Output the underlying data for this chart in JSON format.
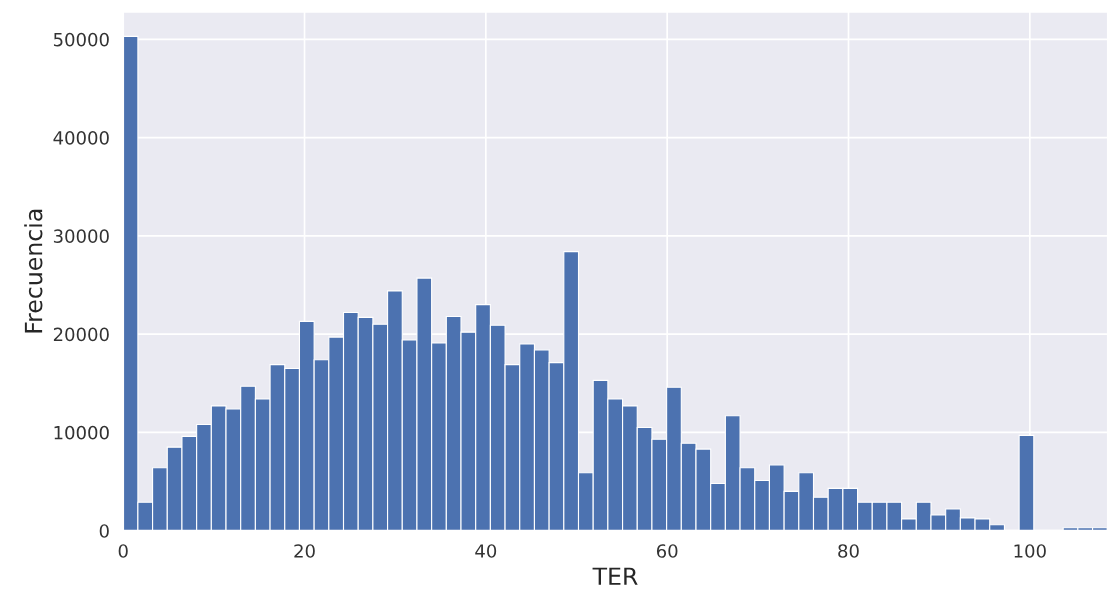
{
  "chart_data": {
    "type": "histogram",
    "xlabel": "TER",
    "ylabel": "Frecuencia",
    "color": "#4c72b0",
    "bins": [
      0,
      1.62,
      3.24,
      4.86,
      6.48,
      8.1,
      9.72,
      11.34,
      12.96,
      14.58,
      16.2,
      17.82,
      19.44,
      21.06,
      22.68,
      24.3,
      25.92,
      27.54,
      29.16,
      30.78,
      32.4,
      34.02,
      35.64,
      37.26,
      38.88,
      40.5,
      42.12,
      43.74,
      45.36,
      46.98,
      48.6,
      50.22,
      51.84,
      53.46,
      55.08,
      56.7,
      58.32,
      59.94,
      61.56,
      63.18,
      64.8,
      66.42,
      68.04,
      69.66,
      71.28,
      72.9,
      74.52,
      76.14,
      77.76,
      79.38,
      81.0,
      82.62,
      84.24,
      85.86,
      87.48,
      89.1,
      90.72,
      92.34,
      93.96,
      95.58,
      97.2,
      98.82,
      100.44,
      102.06,
      103.68,
      105.3,
      106.92,
      108.54
    ],
    "values": [
      50300,
      2900,
      6400,
      8500,
      9600,
      10800,
      12700,
      12400,
      14700,
      13400,
      16900,
      16500,
      21300,
      17400,
      19700,
      22200,
      21700,
      21000,
      24400,
      19400,
      25700,
      19100,
      21800,
      20200,
      23000,
      20900,
      16900,
      19000,
      18400,
      17100,
      28400,
      5900,
      15300,
      13400,
      12700,
      10500,
      9300,
      14600,
      8900,
      8300,
      4800,
      11700,
      6400,
      5100,
      6700,
      4000,
      5900,
      3400,
      4300,
      4300,
      2900,
      2900,
      2900,
      1200,
      2900,
      1600,
      2200,
      1300,
      1200,
      600,
      0,
      9700,
      0,
      null,
      300,
      300,
      300
    ],
    "xlim": [
      0,
      108.6
    ],
    "xticks": [
      0,
      20,
      40,
      60,
      80,
      100
    ],
    "ylim": [
      0,
      52800
    ],
    "yticks": [
      0,
      10000,
      20000,
      30000,
      40000,
      50000
    ],
    "grid": true
  }
}
